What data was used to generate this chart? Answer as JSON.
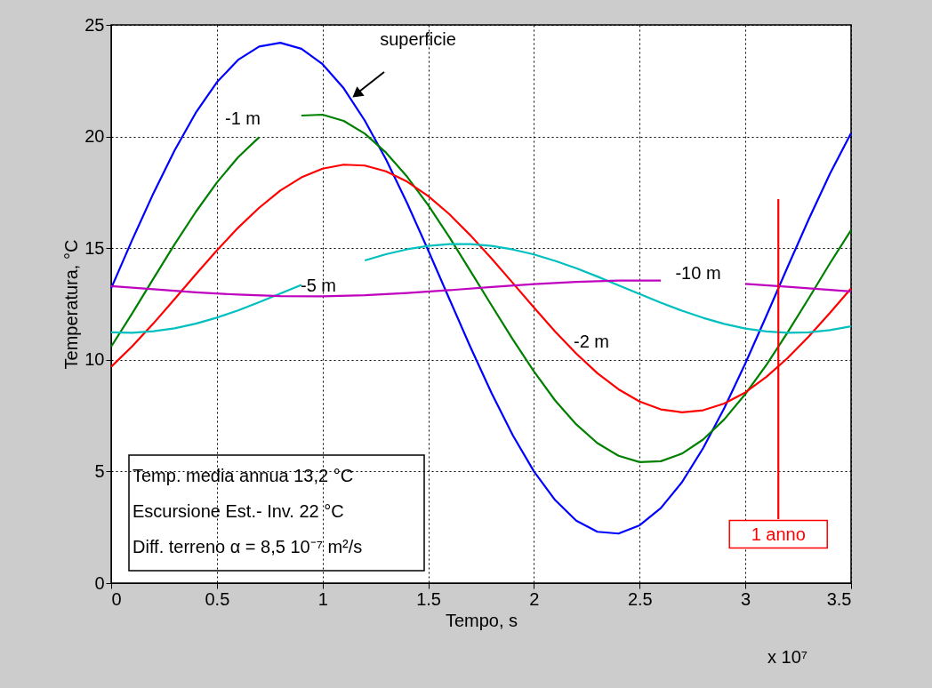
{
  "chart_data": {
    "type": "line",
    "x": [
      0,
      0.1,
      0.2,
      0.3,
      0.4,
      0.5,
      0.6,
      0.7,
      0.8,
      0.9,
      1.0,
      1.1,
      1.2,
      1.3,
      1.4,
      1.5,
      1.6,
      1.7,
      1.8,
      1.9,
      2.0,
      2.1,
      2.2,
      2.3,
      2.4,
      2.5,
      2.6,
      2.7,
      2.8,
      2.9,
      3.0,
      3.1,
      3.2,
      3.3,
      3.4,
      3.5
    ],
    "series": [
      {
        "name": "superficie",
        "color": "#0000ff",
        "values": [
          13.2,
          15.38,
          17.46,
          19.38,
          21.06,
          22.43,
          23.43,
          24.03,
          24.2,
          23.93,
          23.24,
          22.16,
          20.71,
          18.98,
          17.02,
          14.9,
          12.72,
          10.56,
          8.5,
          6.62,
          5.0,
          3.72,
          2.8,
          2.3,
          2.22,
          2.59,
          3.36,
          4.52,
          6.04,
          7.83,
          9.84,
          11.98,
          14.16,
          16.3,
          18.33,
          20.15
        ]
      },
      {
        "name": "-1 m",
        "color": "#008000",
        "values": [
          10.59,
          12.09,
          13.64,
          15.17,
          16.62,
          17.94,
          19.07,
          19.97,
          null,
          20.94,
          20.98,
          20.7,
          20.13,
          19.28,
          18.2,
          16.92,
          15.49,
          13.97,
          12.43,
          10.91,
          9.48,
          8.18,
          7.11,
          6.27,
          5.7,
          5.42,
          5.46,
          5.8,
          6.43,
          7.33,
          8.47,
          9.78,
          11.23,
          12.76,
          14.32,
          15.81
        ]
      },
      {
        "name": "-2 m",
        "color": "#ff0000",
        "values": [
          9.69,
          10.61,
          11.63,
          12.72,
          13.82,
          14.9,
          15.91,
          16.81,
          17.58,
          18.17,
          18.56,
          18.74,
          18.7,
          18.44,
          17.98,
          17.33,
          16.52,
          15.57,
          14.53,
          13.44,
          12.34,
          11.27,
          10.28,
          9.4,
          8.68,
          8.13,
          7.78,
          7.65,
          7.74,
          8.04,
          8.54,
          9.24,
          10.08,
          11.05,
          12.1,
          13.2
        ]
      },
      {
        "name": "-5 m",
        "color": "#00bfbf",
        "values": [
          11.23,
          11.21,
          11.28,
          11.41,
          11.62,
          11.89,
          12.21,
          12.58,
          12.97,
          13.36,
          null,
          null,
          14.45,
          14.73,
          14.95,
          15.1,
          15.18,
          15.18,
          15.1,
          14.94,
          14.72,
          14.43,
          14.1,
          13.73,
          13.34,
          12.95,
          12.56,
          12.2,
          11.88,
          11.61,
          11.4,
          11.27,
          11.21,
          11.23,
          11.33,
          11.5
        ]
      },
      {
        "name": "-10 m",
        "color": "#bf00bf",
        "x": [
          0,
          0.2,
          0.4,
          0.6,
          0.8,
          1.0,
          1.2,
          1.4,
          1.6,
          1.8,
          2.0,
          2.2,
          2.4,
          2.6,
          2.8,
          3.0,
          3.2,
          3.4,
          3.5
        ],
        "values": [
          13.3,
          13.16,
          13.02,
          12.92,
          12.85,
          12.84,
          12.89,
          12.99,
          13.12,
          13.26,
          13.39,
          13.49,
          13.55,
          13.55,
          null,
          13.4,
          13.27,
          13.13,
          13.06
        ]
      }
    ],
    "xlabel": "Tempo, s",
    "ylabel": "Temperatura, °C",
    "xlim": [
      0,
      3.5
    ],
    "xticks": [
      0,
      0.5,
      1,
      1.5,
      2,
      2.5,
      3,
      3.5
    ],
    "ylim": [
      0,
      25
    ],
    "yticks": [
      0,
      5,
      10,
      15,
      20,
      25
    ],
    "ref_lines": [
      {
        "axis": "x",
        "value": 3.156,
        "label": "1 anno",
        "color": "#ff0000"
      }
    ],
    "annotations": [
      "Temp. media annua 13,2 °C",
      "Escursione Est.- Inv. 22 °C",
      "Diff. terreno α = 8,5 10⁻⁷ m²/s",
      "x 10⁷"
    ],
    "grid": true,
    "legend": false,
    "line_style": "solid",
    "marker": "none"
  }
}
